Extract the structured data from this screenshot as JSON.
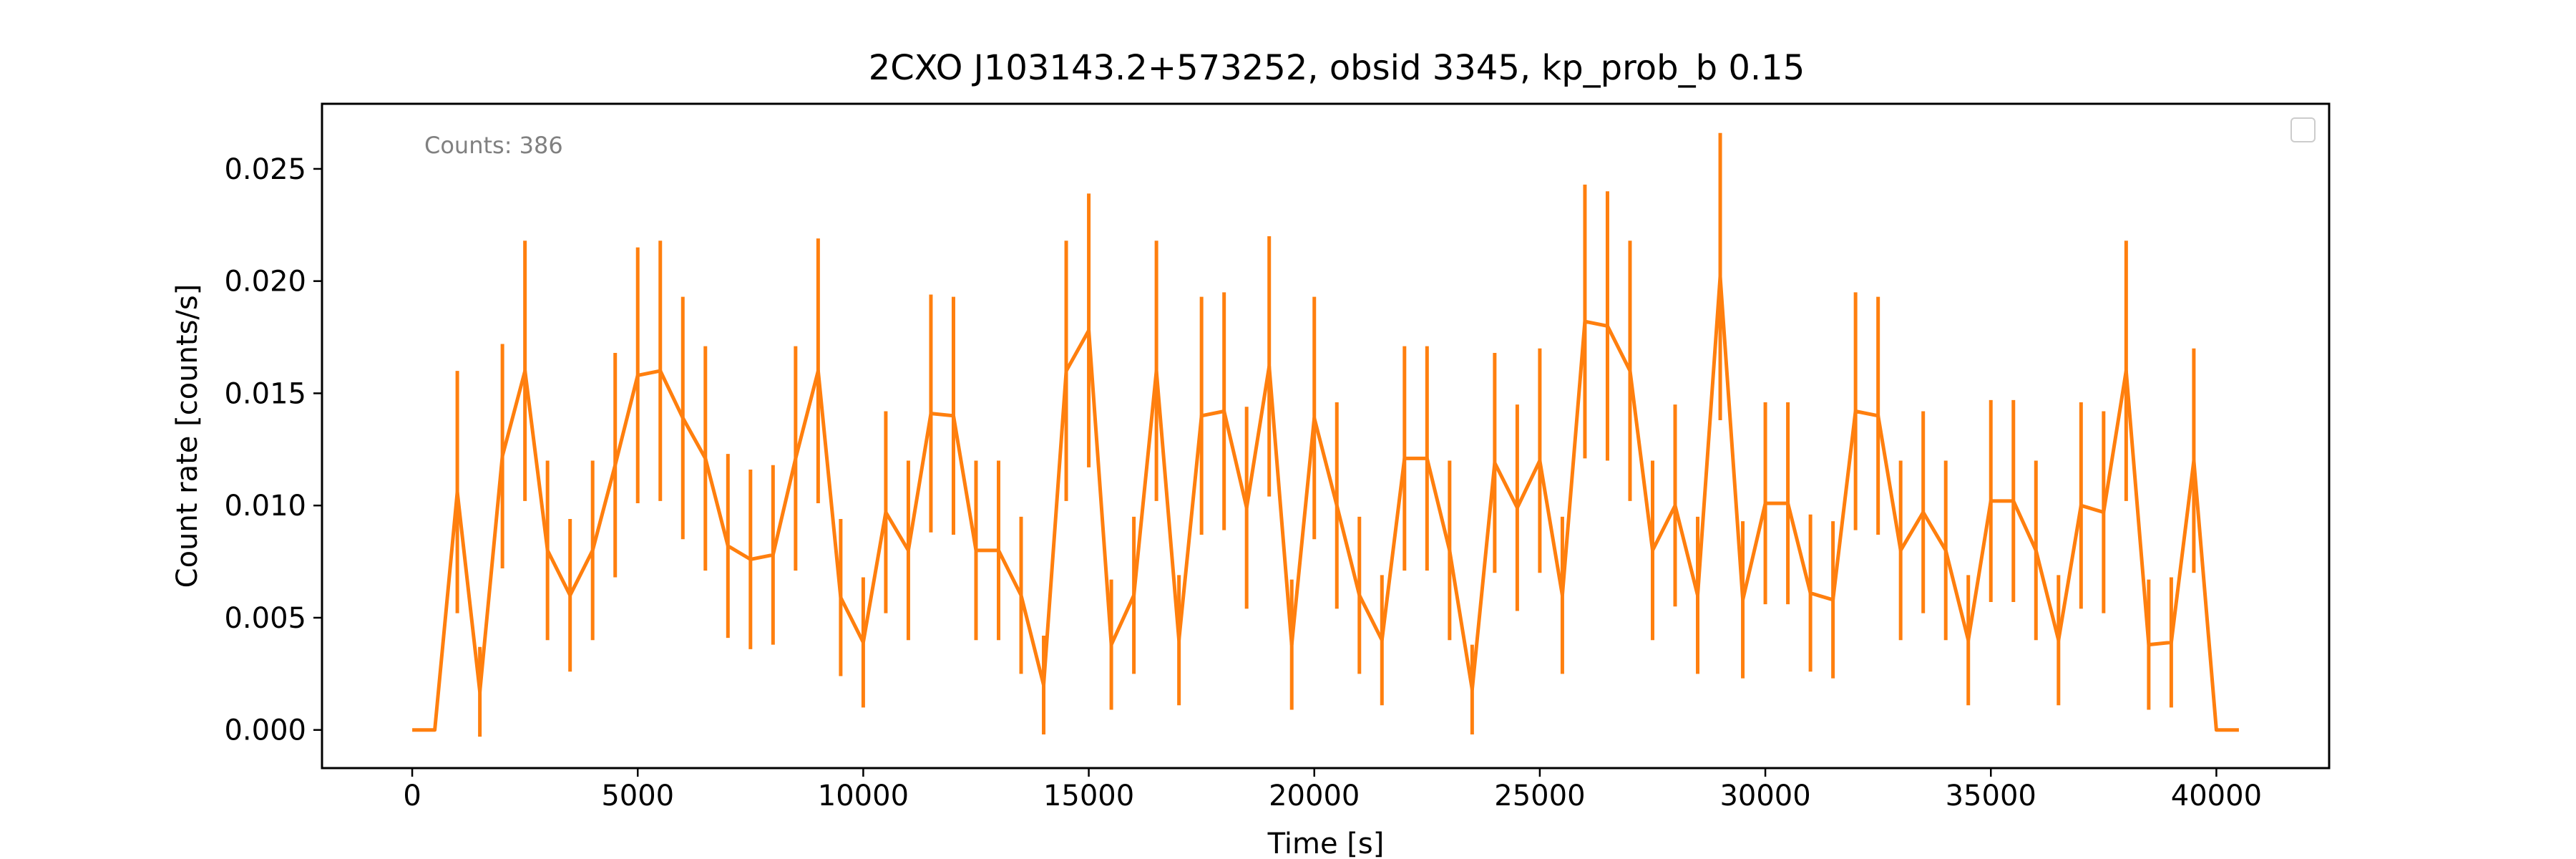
{
  "chart_data": {
    "type": "line",
    "title": "2CXO J103143.2+573252, obsid 3345, kp_prob_b 0.15",
    "xlabel": "Time [s]",
    "ylabel": "Count rate [counts/s]",
    "annotation": "Counts: 386",
    "xlim": [
      -2000,
      42500
    ],
    "ylim": [
      -0.0017,
      0.0279
    ],
    "xticks": [
      0,
      5000,
      10000,
      15000,
      20000,
      25000,
      30000,
      35000,
      40000
    ],
    "xtick_labels": [
      "0",
      "5000",
      "10000",
      "15000",
      "20000",
      "25000",
      "30000",
      "35000",
      "40000"
    ],
    "yticks": [
      0.0,
      0.005,
      0.01,
      0.015,
      0.02,
      0.025
    ],
    "ytick_labels": [
      "0.000",
      "0.005",
      "0.010",
      "0.015",
      "0.020",
      "0.025"
    ],
    "grid": false,
    "legend": "top-right (empty)",
    "color": "#ff7f0e",
    "series": [
      {
        "x": [
          0,
          500,
          1000,
          1500,
          2000,
          2500,
          3000,
          3500,
          4000,
          4500,
          5000,
          5500,
          6000,
          6500,
          7000,
          7500,
          8000,
          8500,
          9000,
          9500,
          10000,
          10500,
          11000,
          11500,
          12000,
          12500,
          13000,
          13500,
          14000,
          14500,
          15000,
          15500,
          16000,
          16500,
          17000,
          17500,
          18000,
          18500,
          19000,
          19500,
          20000,
          20500,
          21000,
          21500,
          22000,
          22500,
          23000,
          23500,
          24000,
          24500,
          25000,
          25500,
          26000,
          26500,
          27000,
          27500,
          28000,
          28500,
          29000,
          29500,
          30000,
          30500,
          31000,
          31500,
          32000,
          32500,
          33000,
          33500,
          34000,
          34500,
          35000,
          35500,
          36000,
          36500,
          37000,
          37500,
          38000,
          38500,
          39000,
          39500,
          40000,
          40500
        ],
        "y": [
          0.0,
          0.0,
          0.0106,
          0.0017,
          0.0122,
          0.016,
          0.008,
          0.006,
          0.008,
          0.0118,
          0.0158,
          0.016,
          0.0139,
          0.0121,
          0.0082,
          0.0076,
          0.0078,
          0.0121,
          0.016,
          0.0059,
          0.0039,
          0.0097,
          0.008,
          0.0141,
          0.014,
          0.008,
          0.008,
          0.006,
          0.002,
          0.016,
          0.0178,
          0.0038,
          0.006,
          0.016,
          0.004,
          0.014,
          0.0142,
          0.0099,
          0.0162,
          0.0038,
          0.0139,
          0.01,
          0.006,
          0.004,
          0.0121,
          0.0121,
          0.008,
          0.0018,
          0.0119,
          0.0099,
          0.012,
          0.006,
          0.0182,
          0.018,
          0.016,
          0.008,
          0.01,
          0.006,
          0.0202,
          0.0058,
          0.0101,
          0.0101,
          0.0061,
          0.0058,
          0.0142,
          0.014,
          0.008,
          0.0097,
          0.008,
          0.004,
          0.0102,
          0.0102,
          0.008,
          0.004,
          0.01,
          0.0097,
          0.016,
          0.0038,
          0.0039,
          0.012,
          0.0,
          0.0
        ],
        "yerr": [
          0.0,
          0.0,
          0.0054,
          0.002,
          0.005,
          0.0058,
          0.004,
          0.0034,
          0.004,
          0.005,
          0.0057,
          0.0058,
          0.0054,
          0.005,
          0.0041,
          0.004,
          0.004,
          0.005,
          0.0059,
          0.0035,
          0.0029,
          0.0045,
          0.004,
          0.0053,
          0.0053,
          0.004,
          0.004,
          0.0035,
          0.0022,
          0.0058,
          0.0061,
          0.0029,
          0.0035,
          0.0058,
          0.0029,
          0.0053,
          0.0053,
          0.0045,
          0.0058,
          0.0029,
          0.0054,
          0.0046,
          0.0035,
          0.0029,
          0.005,
          0.005,
          0.004,
          0.002,
          0.0049,
          0.0046,
          0.005,
          0.0035,
          0.0061,
          0.006,
          0.0058,
          0.004,
          0.0045,
          0.0035,
          0.0064,
          0.0035,
          0.0045,
          0.0045,
          0.0035,
          0.0035,
          0.0053,
          0.0053,
          0.004,
          0.0045,
          0.004,
          0.0029,
          0.0045,
          0.0045,
          0.004,
          0.0029,
          0.0046,
          0.0045,
          0.0058,
          0.0029,
          0.0029,
          0.005,
          0.0,
          0.0
        ]
      }
    ]
  }
}
